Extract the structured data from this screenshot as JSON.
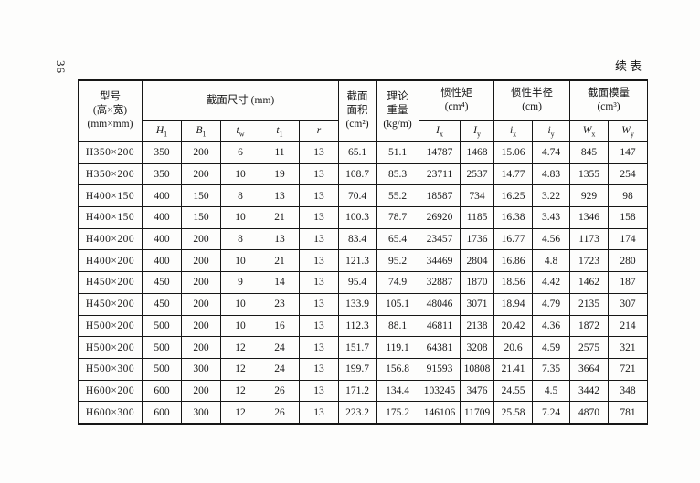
{
  "page": {
    "page_number": "36",
    "continued_label": "续表"
  },
  "table": {
    "header": {
      "model": {
        "line1": "型号",
        "line2": "(高×宽)",
        "line3": "(mm×mm)"
      },
      "dim_group": "截面尺寸 (mm)",
      "area": {
        "line1": "截面",
        "line2": "面积",
        "line3": "(cm²)"
      },
      "weight": {
        "line1": "理论",
        "line2": "重量",
        "line3": "(kg/m)"
      },
      "inertia_group": {
        "line1": "惯性矩",
        "line2": "(cm⁴)"
      },
      "radius_group": {
        "line1": "惯性半径",
        "line2": "(cm)"
      },
      "modulus_group": {
        "line1": "截面模量",
        "line2": "(cm³)"
      },
      "sub_headers": [
        {
          "base": "H",
          "sub": "1"
        },
        {
          "base": "B",
          "sub": "1"
        },
        {
          "base": "t",
          "sub": "w"
        },
        {
          "base": "t",
          "sub": "1"
        },
        {
          "base": "r",
          "sub": ""
        },
        {
          "base": "I",
          "sub": "x"
        },
        {
          "base": "I",
          "sub": "y"
        },
        {
          "base": "i",
          "sub": "x"
        },
        {
          "base": "i",
          "sub": "y"
        },
        {
          "base": "W",
          "sub": "x"
        },
        {
          "base": "W",
          "sub": "y"
        }
      ]
    },
    "rows": [
      [
        "H350×200",
        "350",
        "200",
        "6",
        "11",
        "13",
        "65.1",
        "51.1",
        "14787",
        "1468",
        "15.06",
        "4.74",
        "845",
        "147"
      ],
      [
        "H350×200",
        "350",
        "200",
        "10",
        "19",
        "13",
        "108.7",
        "85.3",
        "23711",
        "2537",
        "14.77",
        "4.83",
        "1355",
        "254"
      ],
      [
        "H400×150",
        "400",
        "150",
        "8",
        "13",
        "13",
        "70.4",
        "55.2",
        "18587",
        "734",
        "16.25",
        "3.22",
        "929",
        "98"
      ],
      [
        "H400×150",
        "400",
        "150",
        "10",
        "21",
        "13",
        "100.3",
        "78.7",
        "26920",
        "1185",
        "16.38",
        "3.43",
        "1346",
        "158"
      ],
      [
        "H400×200",
        "400",
        "200",
        "8",
        "13",
        "13",
        "83.4",
        "65.4",
        "23457",
        "1736",
        "16.77",
        "4.56",
        "1173",
        "174"
      ],
      [
        "H400×200",
        "400",
        "200",
        "10",
        "21",
        "13",
        "121.3",
        "95.2",
        "34469",
        "2804",
        "16.86",
        "4.8",
        "1723",
        "280"
      ],
      [
        "H450×200",
        "450",
        "200",
        "9",
        "14",
        "13",
        "95.4",
        "74.9",
        "32887",
        "1870",
        "18.56",
        "4.42",
        "1462",
        "187"
      ],
      [
        "H450×200",
        "450",
        "200",
        "10",
        "23",
        "13",
        "133.9",
        "105.1",
        "48046",
        "3071",
        "18.94",
        "4.79",
        "2135",
        "307"
      ],
      [
        "H500×200",
        "500",
        "200",
        "10",
        "16",
        "13",
        "112.3",
        "88.1",
        "46811",
        "2138",
        "20.42",
        "4.36",
        "1872",
        "214"
      ],
      [
        "H500×200",
        "500",
        "200",
        "12",
        "24",
        "13",
        "151.7",
        "119.1",
        "64381",
        "3208",
        "20.6",
        "4.59",
        "2575",
        "321"
      ],
      [
        "H500×300",
        "500",
        "300",
        "12",
        "24",
        "13",
        "199.7",
        "156.8",
        "91593",
        "10808",
        "21.41",
        "7.35",
        "3664",
        "721"
      ],
      [
        "H600×200",
        "600",
        "200",
        "12",
        "26",
        "13",
        "171.2",
        "134.4",
        "103245",
        "3476",
        "24.55",
        "4.5",
        "3442",
        "348"
      ],
      [
        "H600×300",
        "600",
        "300",
        "12",
        "26",
        "13",
        "223.2",
        "175.2",
        "146106",
        "11709",
        "25.58",
        "7.24",
        "4870",
        "781"
      ]
    ]
  }
}
